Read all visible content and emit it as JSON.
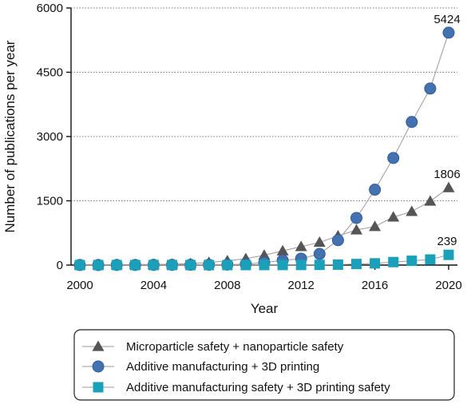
{
  "chart_data": {
    "type": "line",
    "xlabel": "Year",
    "ylabel": "Number of publications per year",
    "xlim": [
      2000,
      2020
    ],
    "ylim": [
      0,
      6000
    ],
    "x_ticks": [
      2000,
      2004,
      2008,
      2012,
      2016,
      2020
    ],
    "y_ticks": [
      0,
      1500,
      3000,
      4500,
      6000
    ],
    "grid": "horizontal dotted",
    "legend_position": "bottom",
    "x": [
      2000,
      2001,
      2002,
      2003,
      2004,
      2005,
      2006,
      2007,
      2008,
      2009,
      2010,
      2011,
      2012,
      2013,
      2014,
      2015,
      2016,
      2017,
      2018,
      2019,
      2020
    ],
    "series": [
      {
        "name": "Microparticle safety + nanoparticle safety",
        "marker": "triangle",
        "color": "#555555",
        "values": [
          5,
          8,
          10,
          12,
          15,
          20,
          35,
          60,
          100,
          150,
          230,
          330,
          430,
          530,
          680,
          820,
          900,
          1120,
          1250,
          1490,
          1806
        ],
        "end_label": "1806"
      },
      {
        "name": "Additive manufacturing + 3D printing",
        "marker": "circle",
        "color": "#4472b0",
        "values": [
          2,
          2,
          3,
          3,
          4,
          5,
          6,
          8,
          10,
          20,
          60,
          110,
          150,
          260,
          580,
          1100,
          1760,
          2500,
          3340,
          4120,
          5424
        ],
        "end_label": "5424"
      },
      {
        "name": "Additive manufacturing safety + 3D printing safety",
        "marker": "square",
        "color": "#1aa0b8",
        "values": [
          0,
          0,
          0,
          0,
          0,
          0,
          0,
          0,
          0,
          0,
          1,
          2,
          3,
          5,
          10,
          25,
          40,
          70,
          100,
          130,
          239
        ],
        "end_label": "239"
      }
    ]
  }
}
